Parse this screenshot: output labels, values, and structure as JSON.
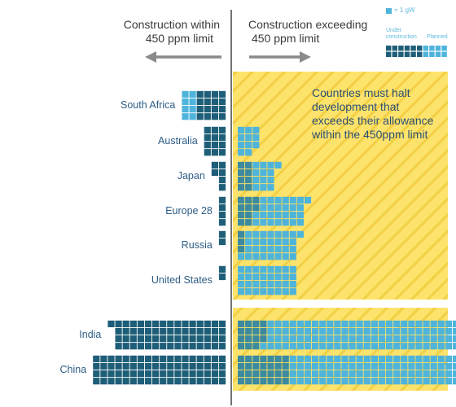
{
  "header": {
    "left_line1": "Construction within",
    "left_line2": "450 ppm limit",
    "right_line1": "Construction exceeding",
    "right_line2": "450 ppm limit"
  },
  "legend": {
    "unit": "= 1 gW",
    "under_construction_line1": "Under",
    "under_construction_line2": "construction",
    "planned": "Planned"
  },
  "callout": "Countries must halt development that exceeds their allowance within the 450ppm limit",
  "colors": {
    "dark_navy": "#1e5e78",
    "dark_teal": "#3b8aa0",
    "light_blue": "#4eb4dc",
    "yellow": "#fde36b",
    "stripe": "#f2cf45",
    "arrow": "#8a8a8a",
    "label": "#2e5d86"
  },
  "chart_data": {
    "type": "waffle",
    "unit": "1 square = 1 gW",
    "columns": [
      "Construction within 450 ppm limit",
      "Construction exceeding 450 ppm limit"
    ],
    "categories": [
      "South Africa",
      "Australia",
      "Japan",
      "Europe 28",
      "Russia",
      "United States",
      "India",
      "China"
    ],
    "series": [
      {
        "name": "Construction within 450 ppm limit",
        "values": [
          24,
          12,
          6,
          4,
          2,
          2,
          61,
          72
        ]
      },
      {
        "name": "Under construction (exceeding limit)",
        "values": [
          0,
          0,
          8,
          10,
          3,
          0,
          15,
          28
        ]
      },
      {
        "name": "Planned (exceeding limit)",
        "values": [
          0,
          11,
          13,
          27,
          30,
          32,
          134,
          109
        ]
      }
    ],
    "under_construction_within": [
      8,
      0,
      0,
      0,
      0,
      0,
      0,
      0
    ]
  }
}
